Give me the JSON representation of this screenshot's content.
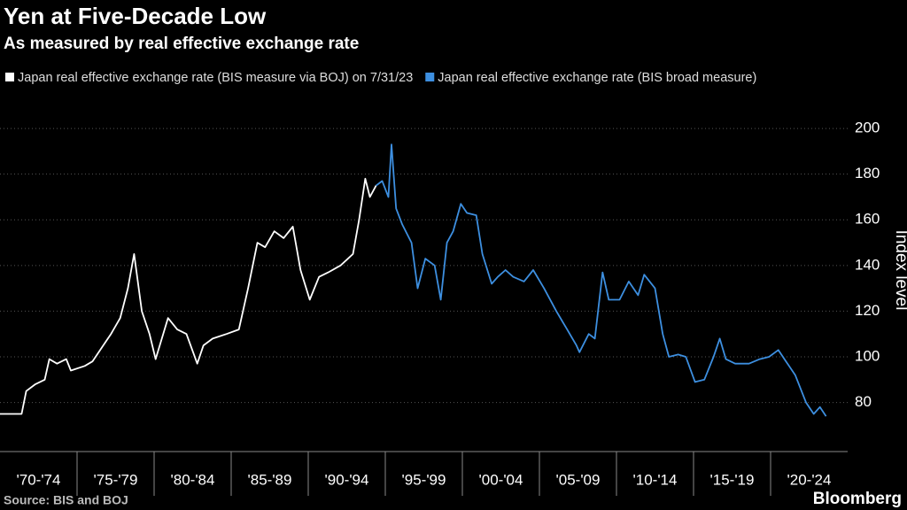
{
  "chart_data": {
    "type": "line",
    "title": "Yen at Five-Decade Low",
    "subtitle": "As measured by real effective exchange rate",
    "y_label": "Index level",
    "source": "Source: BIS and BOJ",
    "brand": "Bloomberg",
    "xlim": [
      1970,
      2025
    ],
    "xticks": [
      {
        "value": 1972.5,
        "label": "'70-'74"
      },
      {
        "value": 1977.5,
        "label": "'75-'79"
      },
      {
        "value": 1982.5,
        "label": "'80-'84"
      },
      {
        "value": 1987.5,
        "label": "'85-'89"
      },
      {
        "value": 1992.5,
        "label": "'90-'94"
      },
      {
        "value": 1997.5,
        "label": "'95-'99"
      },
      {
        "value": 2002.5,
        "label": "'00-'04"
      },
      {
        "value": 2007.5,
        "label": "'05-'09"
      },
      {
        "value": 2012.5,
        "label": "'10-'14"
      },
      {
        "value": 2017.5,
        "label": "'15-'19"
      },
      {
        "value": 2022.5,
        "label": "'20-'24"
      }
    ],
    "ylim": [
      62,
      214
    ],
    "yticks": [
      80,
      100,
      120,
      140,
      160,
      180,
      200
    ],
    "grid": true,
    "series": [
      {
        "name": "Japan real effective exchange rate (BIS measure via BOJ) on 7/31/23",
        "color": "#ffffff",
        "x": [
          1970,
          1971.4,
          1971.7,
          1972.3,
          1972.9,
          1973.2,
          1973.7,
          1974.3,
          1974.6,
          1975.5,
          1976,
          1976.6,
          1977.2,
          1977.8,
          1978.3,
          1978.7,
          1979.2,
          1979.7,
          1980.1,
          1980.5,
          1980.9,
          1981.5,
          1982.1,
          1982.8,
          1983.2,
          1983.8,
          1984.7,
          1985.5,
          1986.1,
          1986.7,
          1987.2,
          1987.8,
          1988.4,
          1989,
          1989.5,
          1990.1,
          1990.7,
          1991.3,
          1992.1,
          1992.9,
          1993.3,
          1993.7,
          1994,
          1994.4
        ],
        "values": [
          75,
          75,
          85,
          88,
          90,
          99,
          97,
          99,
          94,
          96,
          98,
          104,
          110,
          117,
          130,
          145,
          120,
          110,
          99,
          108,
          117,
          112,
          110,
          97,
          105,
          108,
          110,
          112,
          130,
          150,
          148,
          155,
          152,
          157,
          138,
          125,
          135,
          137,
          140,
          145,
          160,
          178,
          170,
          175
        ]
      },
      {
        "name": "Japan real effective exchange rate (BIS broad measure)",
        "color": "#3d8fe0",
        "x": [
          1994.4,
          1994.8,
          1995.2,
          1995.4,
          1995.7,
          1996.1,
          1996.7,
          1997.1,
          1997.6,
          1998.2,
          1998.6,
          1999,
          1999.4,
          1999.9,
          2000.3,
          2000.9,
          2001.3,
          2001.9,
          2002.3,
          2002.8,
          2003.3,
          2004,
          2004.6,
          2005.3,
          2006.1,
          2006.8,
          2007.4,
          2007.6,
          2008.2,
          2008.6,
          2009.1,
          2009.5,
          2010.2,
          2010.8,
          2011.4,
          2011.8,
          2012.5,
          2013,
          2013.4,
          2014,
          2014.5,
          2015.1,
          2015.7,
          2016.3,
          2016.7,
          2017.1,
          2017.7,
          2018.6,
          2019.3,
          2019.9,
          2020.5,
          2021,
          2021.6,
          2022.3,
          2022.8,
          2023.2,
          2023.6
        ],
        "values": [
          175,
          177,
          170,
          193,
          165,
          158,
          150,
          130,
          143,
          140,
          125,
          150,
          155,
          167,
          163,
          162,
          145,
          132,
          135,
          138,
          135,
          133,
          138,
          130,
          120,
          112,
          105,
          102,
          110,
          108,
          137,
          125,
          125,
          133,
          127,
          136,
          130,
          110,
          100,
          101,
          100,
          89,
          90,
          100,
          108,
          99,
          97,
          97,
          99,
          100,
          103,
          98,
          92,
          80,
          75,
          78,
          74
        ]
      }
    ]
  }
}
